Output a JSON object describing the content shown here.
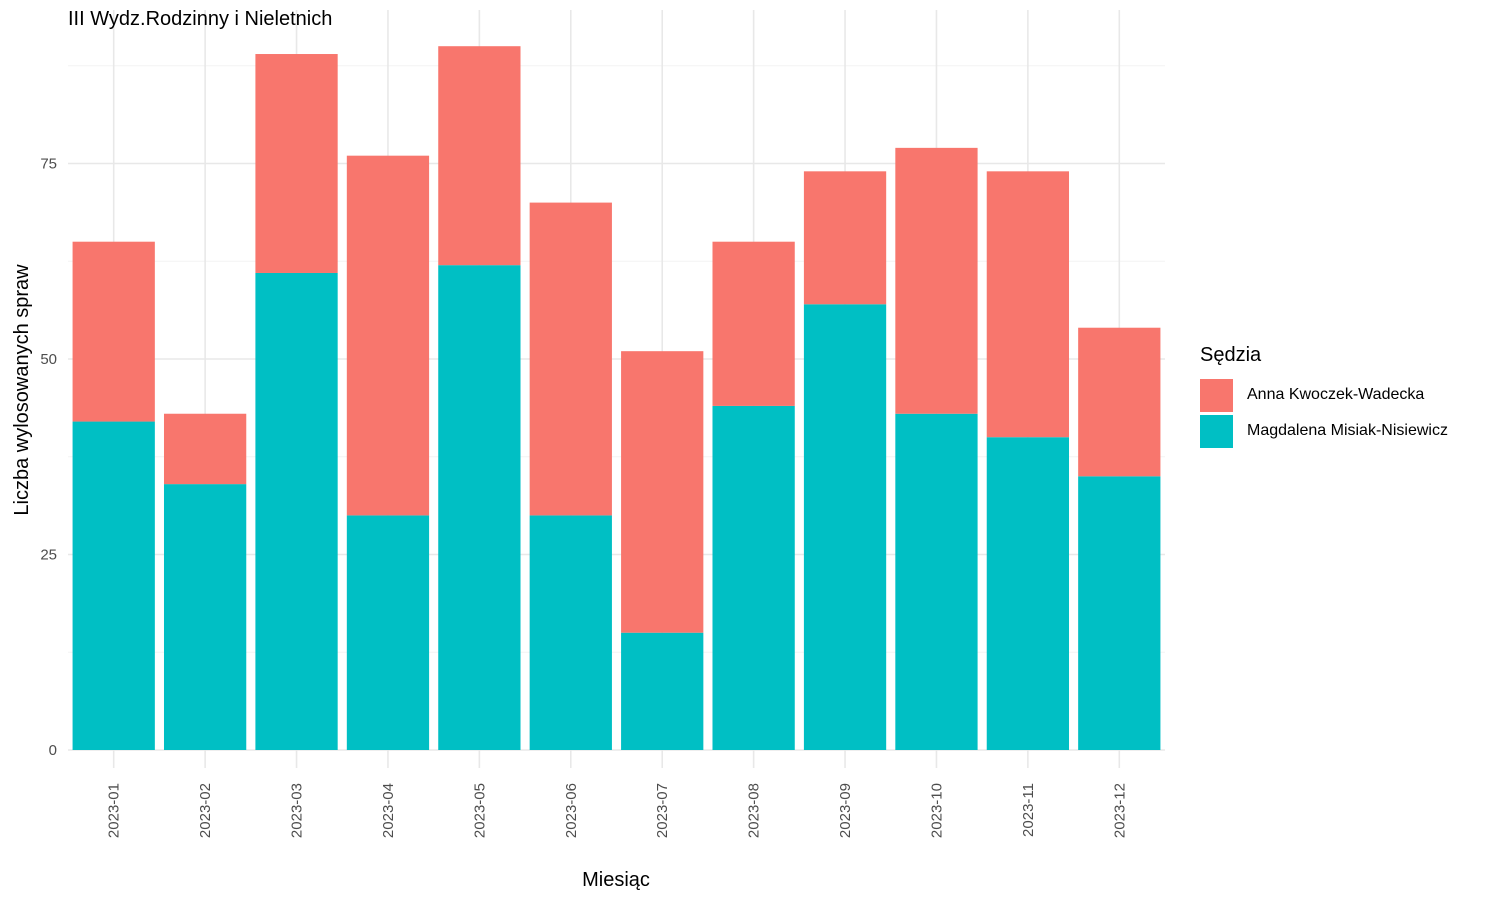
{
  "chart_data": {
    "type": "bar",
    "stacked": true,
    "title": "III Wydz.Rodzinny i Nieletnich",
    "xlabel": "Miesiąc",
    "ylabel": "Liczba wylosowanych spraw",
    "categories": [
      "2023-01",
      "2023-02",
      "2023-03",
      "2023-04",
      "2023-05",
      "2023-06",
      "2023-07",
      "2023-08",
      "2023-09",
      "2023-10",
      "2023-11",
      "2023-12"
    ],
    "series": [
      {
        "name": "Magdalena Misiak-Nisiewicz",
        "color": "#00BFC4",
        "values": [
          42,
          34,
          61,
          30,
          62,
          30,
          15,
          44,
          57,
          43,
          40,
          35
        ]
      },
      {
        "name": "Anna Kwoczek-Wadecka",
        "color": "#F8766D",
        "values": [
          23,
          9,
          28,
          46,
          28,
          40,
          36,
          21,
          17,
          34,
          34,
          19
        ]
      }
    ],
    "yticks": [
      0,
      25,
      50,
      75
    ],
    "ylim": [
      0,
      94
    ],
    "grid": true,
    "legend": {
      "title": "Sędzia",
      "position": "right"
    }
  }
}
